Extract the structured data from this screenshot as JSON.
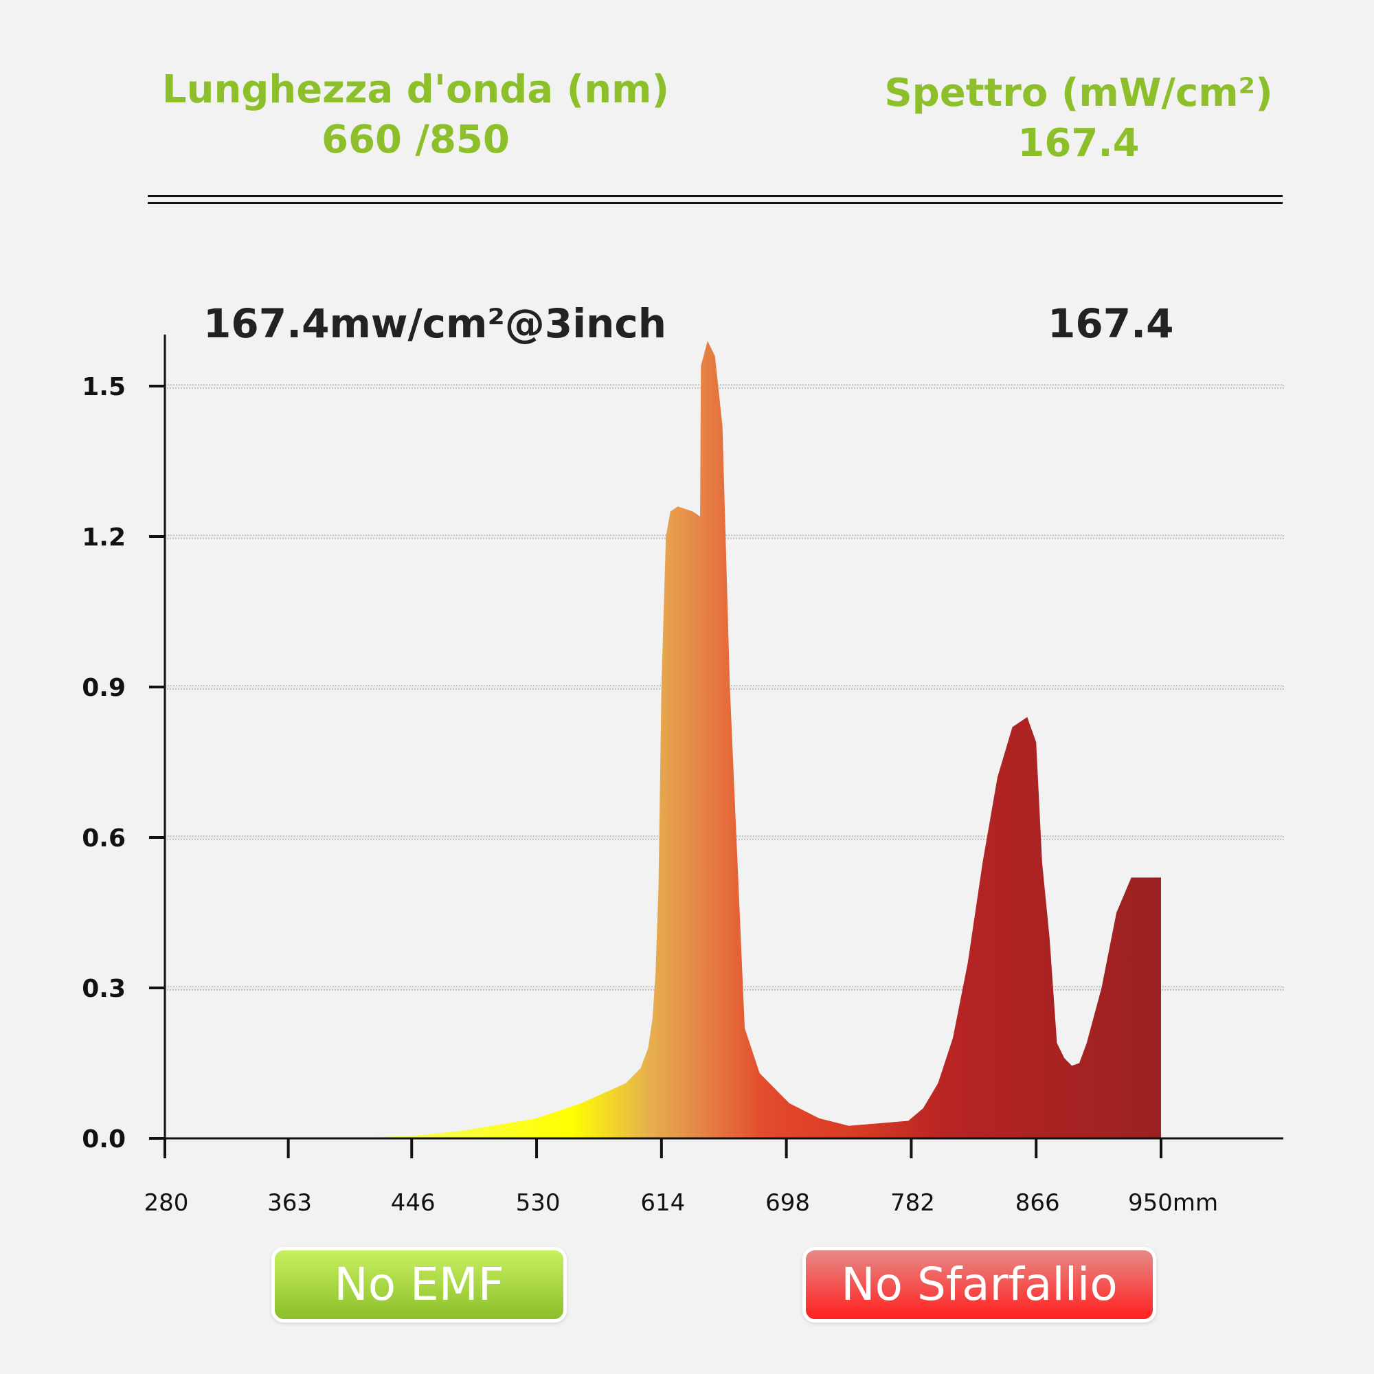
{
  "header": {
    "left_title": "Lunghezza d'onda (nm)",
    "left_value": "660 /850",
    "right_title": "Spettro (mW/cm²)",
    "right_value": "167.4"
  },
  "badges": {
    "left": "No EMF",
    "right": "No Sfarfallio"
  },
  "colors": {
    "accent_green": "#8cbf2a",
    "badge_red": "#ff1f1f",
    "spectrum_yellow": "#ffff00",
    "spectrum_orange": "#e58a48",
    "spectrum_red": "#e03a26",
    "spectrum_dark_red": "#9a2121"
  },
  "chart_data": {
    "type": "area",
    "annotation": "167.4mw/cm²@3inch",
    "annotation_value": "167.4",
    "xlabel": "",
    "ylabel": "",
    "x_ticks": [
      280,
      363,
      446,
      530,
      614,
      698,
      782,
      866,
      950
    ],
    "x_tick_labels": [
      "280",
      "363",
      "446",
      "530",
      "614",
      "698",
      "782",
      "866",
      "950mm"
    ],
    "y_ticks": [
      0.0,
      0.3,
      0.6,
      0.9,
      1.2,
      1.5
    ],
    "y_tick_labels": [
      "0.0",
      "0.3",
      "0.6",
      "0.9",
      "1.2",
      "1.5"
    ],
    "ylim": [
      0,
      1.6
    ],
    "grid": true,
    "series": [
      {
        "x": [
          280,
          400,
          446,
          480,
          530,
          560,
          590,
          600,
          605,
          608,
          610,
          612,
          614,
          617,
          620,
          625,
          635,
          640,
          640.5,
          645,
          650,
          655,
          660,
          670,
          680,
          690,
          700,
          720,
          740,
          760,
          780,
          790,
          800,
          810,
          820,
          830,
          840,
          850,
          860,
          866,
          870,
          875,
          880,
          885,
          890,
          895,
          900,
          910,
          920,
          930,
          940,
          950
        ],
        "y": [
          0.0,
          0.0,
          0.005,
          0.015,
          0.04,
          0.07,
          0.11,
          0.14,
          0.18,
          0.24,
          0.33,
          0.5,
          0.9,
          1.2,
          1.25,
          1.26,
          1.25,
          1.24,
          1.54,
          1.59,
          1.56,
          1.42,
          0.9,
          0.22,
          0.13,
          0.1,
          0.07,
          0.04,
          0.025,
          0.03,
          0.035,
          0.06,
          0.11,
          0.2,
          0.35,
          0.55,
          0.72,
          0.82,
          0.84,
          0.79,
          0.55,
          0.4,
          0.19,
          0.16,
          0.145,
          0.15,
          0.19,
          0.3,
          0.45,
          0.52,
          0.52,
          0.52
        ]
      }
    ]
  }
}
